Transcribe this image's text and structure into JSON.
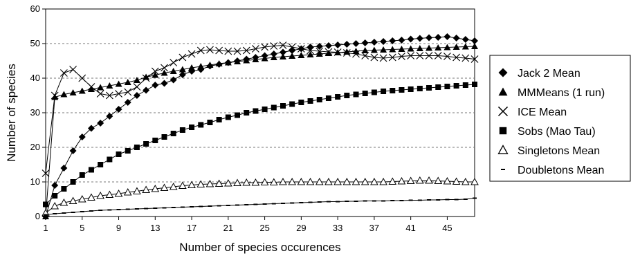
{
  "chart_data": {
    "type": "line",
    "xlabel": "Number of species occurences",
    "ylabel": "Number of species",
    "xlim": [
      1,
      48
    ],
    "ylim": [
      0,
      60
    ],
    "x_ticks": [
      1,
      5,
      9,
      13,
      17,
      21,
      25,
      29,
      33,
      37,
      41,
      45
    ],
    "y_ticks": [
      0,
      10,
      20,
      30,
      40,
      50,
      60
    ],
    "grid": "horizontal dashed",
    "legend_position": "right",
    "x": [
      1,
      2,
      3,
      4,
      5,
      6,
      7,
      8,
      9,
      10,
      11,
      12,
      13,
      14,
      15,
      16,
      17,
      18,
      19,
      20,
      21,
      22,
      23,
      24,
      25,
      26,
      27,
      28,
      29,
      30,
      31,
      32,
      33,
      34,
      35,
      36,
      37,
      38,
      39,
      40,
      41,
      42,
      43,
      44,
      45,
      46,
      47,
      48
    ],
    "series": [
      {
        "name": "Jack 2 Mean",
        "marker": "diamond",
        "values": [
          0,
          9,
          14,
          19,
          23,
          25.5,
          27,
          29,
          31,
          33,
          35,
          36.5,
          38,
          38.5,
          39.5,
          41,
          42,
          42.5,
          43.5,
          44,
          44.5,
          45,
          45.5,
          46,
          46.5,
          47,
          47.5,
          48,
          48.5,
          49,
          49.2,
          49.4,
          49.6,
          49.8,
          50,
          50.2,
          50.4,
          50.6,
          50.8,
          51,
          51.3,
          51.5,
          51.7,
          51.8,
          52,
          51.6,
          51.2,
          50.8
        ]
      },
      {
        "name": "MMMeans (1 run)",
        "marker": "triangle",
        "values": [
          0,
          34.5,
          35.3,
          35.8,
          36.3,
          36.8,
          37.3,
          37.8,
          38.3,
          38.8,
          39.4,
          40.3,
          40.9,
          41.5,
          42,
          42.5,
          43,
          43.4,
          43.8,
          44.2,
          44.5,
          44.8,
          45.1,
          45.4,
          45.7,
          46,
          46.2,
          46.4,
          46.6,
          46.8,
          47,
          47.2,
          47.4,
          47.6,
          47.8,
          48,
          48.1,
          48.2,
          48.3,
          48.4,
          48.5,
          48.6,
          48.7,
          48.8,
          48.9,
          49,
          49.1,
          49.2
        ]
      },
      {
        "name": "ICE Mean",
        "marker": "x",
        "values": [
          12.5,
          35,
          41.5,
          42.5,
          40,
          37.5,
          35.5,
          35,
          35.5,
          36,
          37.5,
          40,
          42,
          43,
          44.5,
          46,
          47,
          48,
          48.2,
          48,
          47.8,
          47.8,
          48,
          48.5,
          49,
          49.3,
          49.5,
          49,
          48.5,
          48,
          47.8,
          47.6,
          47.5,
          47.3,
          47,
          46.5,
          46,
          45.8,
          46,
          46.3,
          46.5,
          46.5,
          46.5,
          46.5,
          46.3,
          46,
          45.8,
          45.5
        ]
      },
      {
        "name": "Sobs (Mao Tau)",
        "marker": "square",
        "values": [
          3.5,
          6,
          8,
          10,
          12,
          13.5,
          15,
          16.5,
          18,
          19,
          20,
          21,
          22,
          23,
          24,
          25,
          25.8,
          26.5,
          27.2,
          28,
          28.7,
          29.3,
          30,
          30.5,
          31,
          31.5,
          32,
          32.5,
          33,
          33.4,
          33.8,
          34.2,
          34.6,
          35,
          35.3,
          35.6,
          35.9,
          36.2,
          36.4,
          36.6,
          36.8,
          37,
          37.2,
          37.4,
          37.6,
          37.8,
          38,
          38.2
        ]
      },
      {
        "name": "Singletons Mean",
        "marker": "open-triangle",
        "values": [
          1,
          3,
          4,
          4.5,
          5,
          5.5,
          6,
          6.3,
          6.6,
          7,
          7.3,
          7.7,
          8,
          8.3,
          8.6,
          8.9,
          9.1,
          9.3,
          9.4,
          9.5,
          9.6,
          9.7,
          9.8,
          9.8,
          9.9,
          9.9,
          10,
          10,
          10,
          10,
          10,
          10,
          10,
          10,
          10,
          10,
          10,
          10,
          10.1,
          10.2,
          10.3,
          10.4,
          10.4,
          10.3,
          10.2,
          10.1,
          10,
          10
        ]
      },
      {
        "name": "Doubletons Mean",
        "marker": "dash",
        "values": [
          0.5,
          0.8,
          1,
          1.2,
          1.4,
          1.6,
          1.8,
          1.9,
          2,
          2.1,
          2.2,
          2.3,
          2.4,
          2.5,
          2.6,
          2.7,
          2.8,
          2.9,
          3,
          3.1,
          3.2,
          3.3,
          3.4,
          3.5,
          3.6,
          3.7,
          3.8,
          3.9,
          4,
          4.1,
          4.2,
          4.3,
          4.3,
          4.4,
          4.4,
          4.5,
          4.5,
          4.5,
          4.6,
          4.6,
          4.7,
          4.7,
          4.8,
          4.8,
          4.9,
          4.9,
          5,
          5.3
        ]
      }
    ]
  }
}
